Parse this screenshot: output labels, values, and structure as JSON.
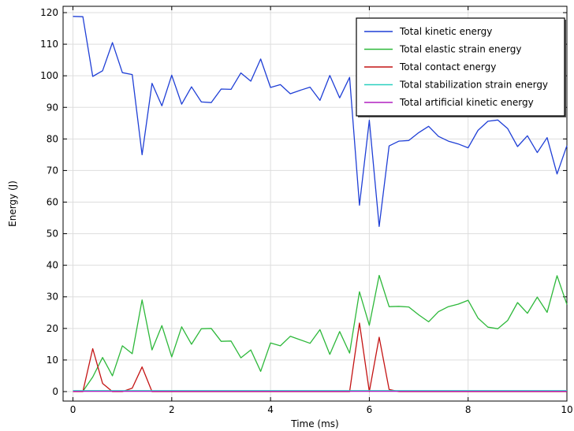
{
  "chart_data": {
    "type": "line",
    "title": "",
    "xlabel": "Time (ms)",
    "ylabel": "Energy (J)",
    "xlim": [
      -0.2,
      10
    ],
    "ylim": [
      -3,
      122
    ],
    "x_ticks": [
      0,
      2,
      4,
      6,
      8,
      10
    ],
    "y_ticks": [
      0,
      10,
      20,
      30,
      40,
      50,
      60,
      70,
      80,
      90,
      100,
      110,
      120
    ],
    "grid": true,
    "legend_position": "top-right",
    "x": [
      0,
      0.2,
      0.4,
      0.6,
      0.8,
      1.0,
      1.2,
      1.4,
      1.6,
      1.8,
      2.0,
      2.2,
      2.4,
      2.6,
      2.8,
      3.0,
      3.2,
      3.4,
      3.6,
      3.8,
      4.0,
      4.2,
      4.4,
      4.6,
      4.8,
      5.0,
      5.2,
      5.4,
      5.6,
      5.8,
      6.0,
      6.2,
      6.4,
      6.6,
      6.8,
      7.0,
      7.2,
      7.4,
      7.6,
      7.8,
      8.0,
      8.2,
      8.4,
      8.6,
      8.8,
      9.0,
      9.2,
      9.4,
      9.6,
      9.8,
      10.0
    ],
    "series": [
      {
        "name": "Total kinetic energy",
        "color": "#1f3fd6",
        "values": [
          118.8,
          118.7,
          99.8,
          101.6,
          110.5,
          101.0,
          100.4,
          75.0,
          97.6,
          90.5,
          100.2,
          91.0,
          96.5,
          91.7,
          91.5,
          95.8,
          95.7,
          100.9,
          98.3,
          105.3,
          96.3,
          97.2,
          94.3,
          95.4,
          96.4,
          92.2,
          100.1,
          93.0,
          99.5,
          59.0,
          85.9,
          52.3,
          77.8,
          79.3,
          79.5,
          82.0,
          84.0,
          80.8,
          79.3,
          78.4,
          77.2,
          82.7,
          85.6,
          86.0,
          83.3,
          77.6,
          81.0,
          75.7,
          80.4,
          68.9,
          77.9
        ]
      },
      {
        "name": "Total elastic strain energy",
        "color": "#2db83a",
        "values": [
          0.2,
          0.1,
          4.6,
          10.8,
          5.0,
          14.5,
          12.0,
          29.0,
          13.2,
          20.9,
          11.0,
          20.5,
          15.0,
          19.9,
          20.0,
          15.9,
          16.0,
          10.7,
          13.2,
          6.4,
          15.4,
          14.5,
          17.5,
          16.4,
          15.3,
          19.6,
          11.8,
          19.0,
          12.2,
          31.6,
          21.0,
          36.8,
          26.9,
          27.0,
          26.8,
          24.3,
          22.1,
          25.3,
          26.9,
          27.7,
          28.9,
          23.3,
          20.4,
          19.9,
          22.5,
          28.2,
          24.8,
          29.9,
          25.1,
          36.7,
          27.6
        ]
      },
      {
        "name": "Total contact energy",
        "color": "#c41414",
        "values": [
          0,
          0,
          13.6,
          2.6,
          0,
          0,
          1.1,
          7.8,
          0,
          0,
          0,
          0,
          0,
          0,
          0,
          0,
          0,
          0,
          0,
          0,
          0,
          0,
          0,
          0,
          0,
          0,
          0,
          0,
          0,
          21.7,
          0,
          17.2,
          0.7,
          0,
          0,
          0,
          0,
          0,
          0,
          0,
          0,
          0,
          0,
          0,
          0,
          0,
          0,
          0,
          0,
          0,
          0
        ]
      },
      {
        "name": "Total stabilization strain energy",
        "color": "#2ad0c0",
        "values": [
          0.3,
          0.3,
          0.3,
          0.3,
          0.3,
          0.3,
          0.3,
          0.3,
          0.3,
          0.3,
          0.3,
          0.3,
          0.3,
          0.3,
          0.3,
          0.3,
          0.3,
          0.3,
          0.3,
          0.3,
          0.3,
          0.3,
          0.3,
          0.3,
          0.3,
          0.3,
          0.3,
          0.3,
          0.3,
          0.3,
          0.3,
          0.3,
          0.3,
          0.3,
          0.3,
          0.3,
          0.3,
          0.3,
          0.3,
          0.3,
          0.3,
          0.3,
          0.3,
          0.3,
          0.3,
          0.3,
          0.3,
          0.3,
          0.3,
          0.3,
          0.3
        ]
      },
      {
        "name": "Total artificial kinetic energy",
        "color": "#b020c0",
        "values": [
          0.1,
          0.1,
          0.1,
          0.1,
          0.1,
          0.1,
          0.1,
          0.1,
          0.1,
          0.1,
          0.1,
          0.1,
          0.1,
          0.1,
          0.1,
          0.1,
          0.1,
          0.1,
          0.1,
          0.1,
          0.1,
          0.1,
          0.1,
          0.1,
          0.1,
          0.1,
          0.1,
          0.1,
          0.1,
          0.1,
          0.1,
          0.1,
          0.1,
          0.1,
          0.1,
          0.1,
          0.1,
          0.1,
          0.1,
          0.1,
          0.1,
          0.1,
          0.1,
          0.1,
          0.1,
          0.1,
          0.1,
          0.1,
          0.1,
          0.1,
          0.1
        ]
      }
    ]
  }
}
